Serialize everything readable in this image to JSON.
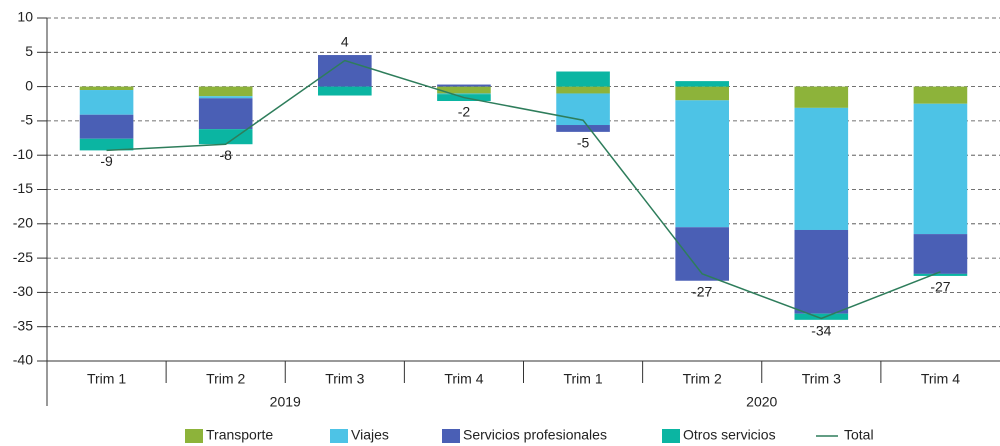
{
  "chart_data": {
    "type": "stacked_bar_line",
    "categories": [
      "Trim 1",
      "Trim 2",
      "Trim 3",
      "Trim 4",
      "Trim 1",
      "Trim 2",
      "Trim 3",
      "Trim 4"
    ],
    "x_groups": [
      "2019",
      "2020"
    ],
    "series": [
      {
        "name": "Transporte",
        "color": "#8db33a",
        "values": [
          -0.5,
          -1.4,
          0,
          -1.0,
          -1.0,
          -2.0,
          -3.1,
          -2.5
        ]
      },
      {
        "name": "Viajes",
        "color": "#4dc3e6",
        "values": [
          -3.6,
          -0.3,
          0,
          -0.1,
          -4.6,
          -18.5,
          -17.8,
          -19.0
        ]
      },
      {
        "name": "Servicios profesionales",
        "color": "#4a5fb5",
        "values": [
          -3.5,
          -4.5,
          4.6,
          0.3,
          -1.0,
          -7.8,
          -12.2,
          -5.8
        ]
      },
      {
        "name": "Otros servicios",
        "color": "#0bb5a2",
        "values": [
          -1.7,
          -2.2,
          -1.3,
          -1.0,
          2.2,
          0.8,
          -0.9,
          -0.3
        ]
      }
    ],
    "line_series": {
      "name": "Total",
      "color": "#2e7d5b",
      "values": [
        -9.3,
        -8.4,
        3.8,
        -1.6,
        -4.9,
        -27.3,
        -33.8,
        -27.0
      ],
      "value_labels": [
        "-9",
        "-8",
        "4",
        "-2",
        "-5",
        "-27",
        "-34",
        "-27"
      ]
    },
    "ylim": [
      -40,
      10
    ],
    "yticks": [
      -40,
      -35,
      -30,
      -25,
      -20,
      -15,
      -10,
      -5,
      0,
      5,
      10
    ],
    "grid": true
  }
}
